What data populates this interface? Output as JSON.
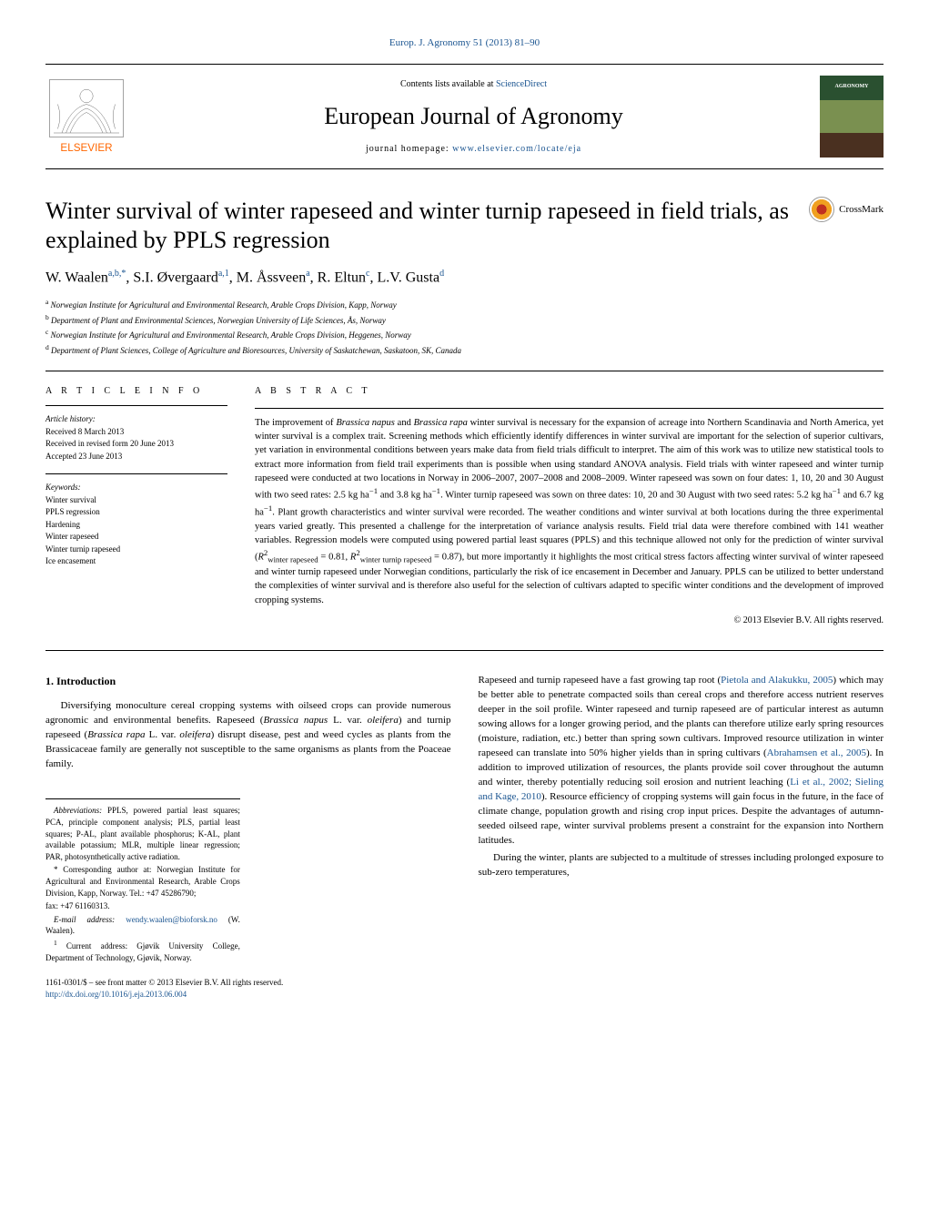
{
  "header": {
    "citation": "Europ. J. Agronomy 51 (2013) 81–90",
    "contents_prefix": "Contents lists available at ",
    "contents_link": "ScienceDirect",
    "journal_name": "European Journal of Agronomy",
    "homepage_prefix": "journal homepage: ",
    "homepage_url": "www.elsevier.com/locate/eja",
    "cover_label": "AGRONOMY"
  },
  "crossmark": {
    "label": "CrossMark"
  },
  "article": {
    "title": "Winter survival of winter rapeseed and winter turnip rapeseed in field trials, as explained by PPLS regression",
    "authors_html": "W. Waalen<sup>a,b,*</sup>, S.I. Øvergaard<sup>a,1</sup>, M. Åssveen<sup>a</sup>, R. Eltun<sup>c</sup>, L.V. Gusta<sup>d</sup>",
    "affiliations": [
      {
        "sup": "a",
        "text": "Norwegian Institute for Agricultural and Environmental Research, Arable Crops Division, Kapp, Norway"
      },
      {
        "sup": "b",
        "text": "Department of Plant and Environmental Sciences, Norwegian University of Life Sciences, Ås, Norway"
      },
      {
        "sup": "c",
        "text": "Norwegian Institute for Agricultural and Environmental Research, Arable Crops Division, Heggenes, Norway"
      },
      {
        "sup": "d",
        "text": "Department of Plant Sciences, College of Agriculture and Bioresources, University of Saskatchewan, Saskatoon, SK, Canada"
      }
    ]
  },
  "info": {
    "heading": "A R T I C L E   I N F O",
    "history_label": "Article history:",
    "history": [
      "Received 8 March 2013",
      "Received in revised form 20 June 2013",
      "Accepted 23 June 2013"
    ],
    "keywords_label": "Keywords:",
    "keywords": [
      "Winter survival",
      "PPLS regression",
      "Hardening",
      "Winter rapeseed",
      "Winter turnip rapeseed",
      "Ice encasement"
    ]
  },
  "abstract": {
    "heading": "A B S T R A C T",
    "text_html": "The improvement of <span class=\"ital\">Brassica napus</span> and <span class=\"ital\">Brassica rapa</span> winter survival is necessary for the expansion of acreage into Northern Scandinavia and North America, yet winter survival is a complex trait. Screening methods which efficiently identify differences in winter survival are important for the selection of superior cultivars, yet variation in environmental conditions between years make data from field trials difficult to interpret. The aim of this work was to utilize new statistical tools to extract more information from field trail experiments than is possible when using standard ANOVA analysis. Field trials with winter rapeseed and winter turnip rapeseed were conducted at two locations in Norway in 2006–2007, 2007–2008 and 2008–2009. Winter rapeseed was sown on four dates: 1, 10, 20 and 30 August with two seed rates: 2.5 kg ha<sup>−1</sup> and 3.8 kg ha<sup>−1</sup>. Winter turnip rapeseed was sown on three dates: 10, 20 and 30 August with two seed rates: 5.2 kg ha<sup>−1</sup> and 6.7 kg ha<sup>−1</sup>. Plant growth characteristics and winter survival were recorded. The weather conditions and winter survival at both locations during the three experimental years varied greatly. This presented a challenge for the interpretation of variance analysis results. Field trial data were therefore combined with 141 weather variables. Regression models were computed using powered partial least squares (PPLS) and this technique allowed not only for the prediction of winter survival (<span class=\"ital\">R</span><sup>2</sup><sub>winter rapeseed</sub> = 0.81, <span class=\"ital\">R</span><sup>2</sup><sub>winter turnip rapeseed</sub> = 0.87), but more importantly it highlights the most critical stress factors affecting winter survival of winter rapeseed and winter turnip rapeseed under Norwegian conditions, particularly the risk of ice encasement in December and January. PPLS can be utilized to better understand the complexities of winter survival and is therefore also useful for the selection of cultivars adapted to specific winter conditions and the development of improved cropping systems.",
    "copyright": "© 2013 Elsevier B.V. All rights reserved."
  },
  "body": {
    "section_heading": "1. Introduction",
    "col1_html": "Diversifying monoculture cereal cropping systems with oilseed crops can provide numerous agronomic and environmental benefits. Rapeseed (<span class=\"ital\">Brassica napus</span> L. var. <span class=\"ital\">oleifera</span>) and turnip rapeseed (<span class=\"ital\">Brassica rapa</span> L. var. <span class=\"ital\">oleifera</span>) disrupt disease, pest and weed cycles as plants from the Brassicaceae family are generally not susceptible to the same organisms as plants from the Poaceae family.",
    "col2_p1_html": "Rapeseed and turnip rapeseed have a fast growing tap root (<a class=\"ref\" href=\"#\">Pietola and Alakukku, 2005</a>) which may be better able to penetrate compacted soils than cereal crops and therefore access nutrient reserves deeper in the soil profile. Winter rapeseed and turnip rapeseed are of particular interest as autumn sowing allows for a longer growing period, and the plants can therefore utilize early spring resources (moisture, radiation, etc.) better than spring sown cultivars. Improved resource utilization in winter rapeseed can translate into 50% higher yields than in spring cultivars (<a class=\"ref\" href=\"#\">Abrahamsen et al., 2005</a>). In addition to improved utilization of resources, the plants provide soil cover throughout the autumn and winter, thereby potentially reducing soil erosion and nutrient leaching (<a class=\"ref\" href=\"#\">Li et al., 2002; Sieling and Kage, 2010</a>). Resource efficiency of cropping systems will gain focus in the future, in the face of climate change, population growth and rising crop input prices. Despite the advantages of autumn-seeded oilseed rape, winter survival problems present a constraint for the expansion into Northern latitudes.",
    "col2_p2_html": "During the winter, plants are subjected to a multitude of stresses including prolonged exposure to sub-zero temperatures,"
  },
  "footnotes": {
    "abbrev_label": "Abbreviations:",
    "abbrev_text": " PPLS, powered partial least squares; PCA, principle component analysis; PLS, partial least squares; P-AL, plant available phosphorus; K-AL, plant available potassium; MLR, multiple linear regression; PAR, photosynthetically active radiation.",
    "corr_text": "* Corresponding author at: Norwegian Institute for Agricultural and Environmental Research, Arable Crops Division, Kapp, Norway. Tel.: +47 45286790;",
    "fax": "fax: +47 61160313.",
    "email_label": "E-mail address: ",
    "email": "wendy.waalen@bioforsk.no",
    "email_suffix": " (W. Waalen).",
    "present_addr": "Current address: Gjøvik University College, Department of Technology, Gjøvik, Norway."
  },
  "footer": {
    "line1": "1161-0301/$ – see front matter © 2013 Elsevier B.V. All rights reserved.",
    "doi": "http://dx.doi.org/10.1016/j.eja.2013.06.004"
  },
  "colors": {
    "link": "#1a5490",
    "text": "#000000",
    "cover_top": "#2a5030",
    "cover_mid": "#7a9050",
    "cover_bot": "#4a3020"
  }
}
